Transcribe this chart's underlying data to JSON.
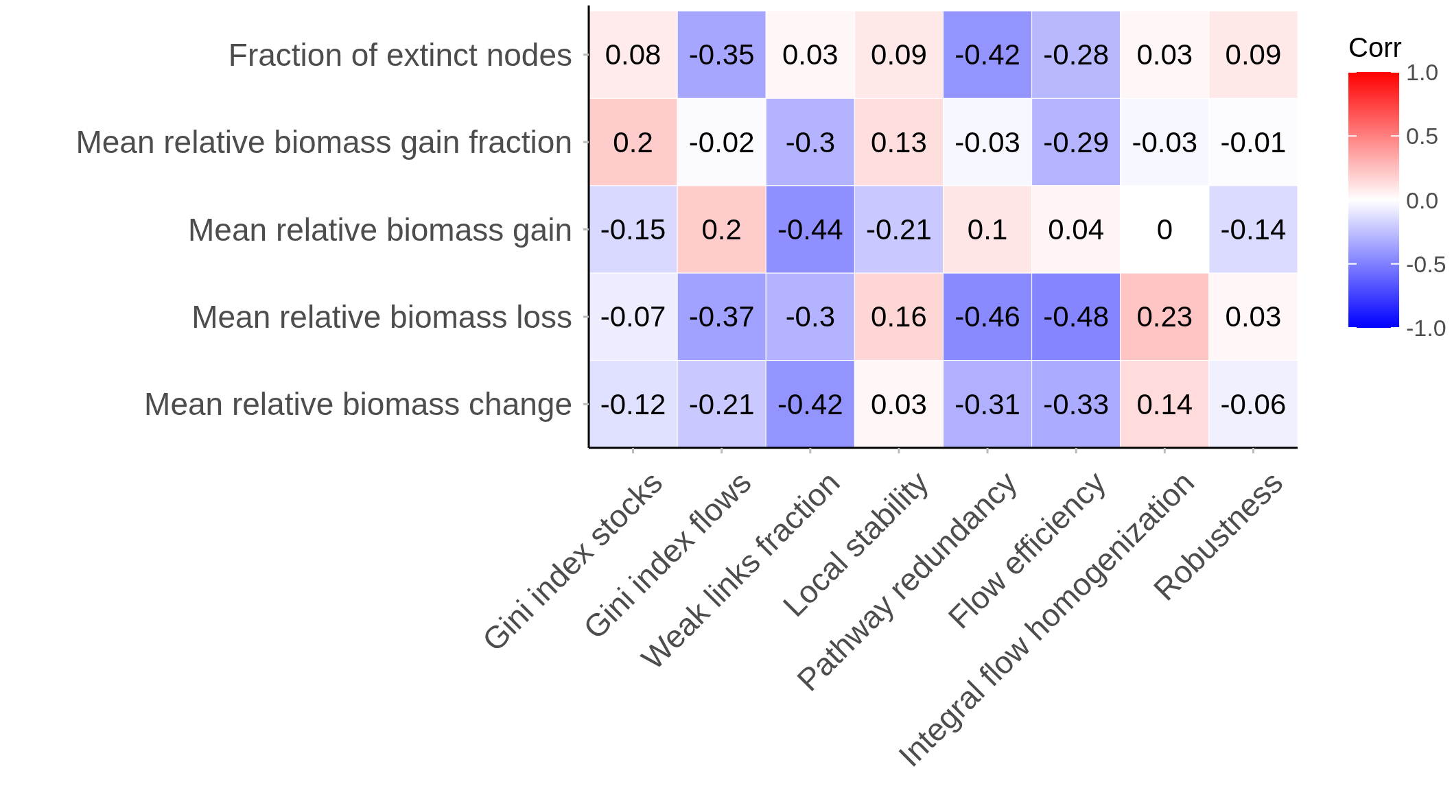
{
  "chart_data": {
    "type": "heatmap",
    "clabel": "Corr",
    "categories": [
      "Gini index stocks",
      "Gini index flows",
      "Weak links fraction",
      "Local stability",
      "Pathway redundancy",
      "Flow efficiency",
      "Integral flow homogenization",
      "Robustness"
    ],
    "y_categories": [
      "Fraction of extinct nodes",
      "Mean relative biomass gain fraction",
      "Mean relative biomass gain",
      "Mean relative biomass loss",
      "Mean relative biomass change"
    ],
    "cells": [
      [
        0.08,
        -0.35,
        0.03,
        0.09,
        -0.42,
        -0.28,
        0.03,
        0.09
      ],
      [
        0.2,
        -0.02,
        -0.3,
        0.13,
        -0.03,
        -0.29,
        -0.03,
        -0.01
      ],
      [
        -0.15,
        0.2,
        -0.44,
        -0.21,
        0.1,
        0.04,
        0,
        -0.14
      ],
      [
        -0.07,
        -0.37,
        -0.3,
        0.16,
        -0.46,
        -0.48,
        0.23,
        0.03
      ],
      [
        -0.12,
        -0.21,
        -0.42,
        0.03,
        -0.31,
        -0.33,
        0.14,
        -0.06
      ]
    ],
    "data_labels": true,
    "clim": [
      -1,
      1
    ],
    "cticks": [
      {
        "value": 1,
        "label": "1.0"
      },
      {
        "value": 0.5,
        "label": "0.5"
      },
      {
        "value": 0,
        "label": "0.0"
      },
      {
        "value": -0.5,
        "label": "-0.5"
      },
      {
        "value": -1,
        "label": "-1.0"
      }
    ]
  }
}
